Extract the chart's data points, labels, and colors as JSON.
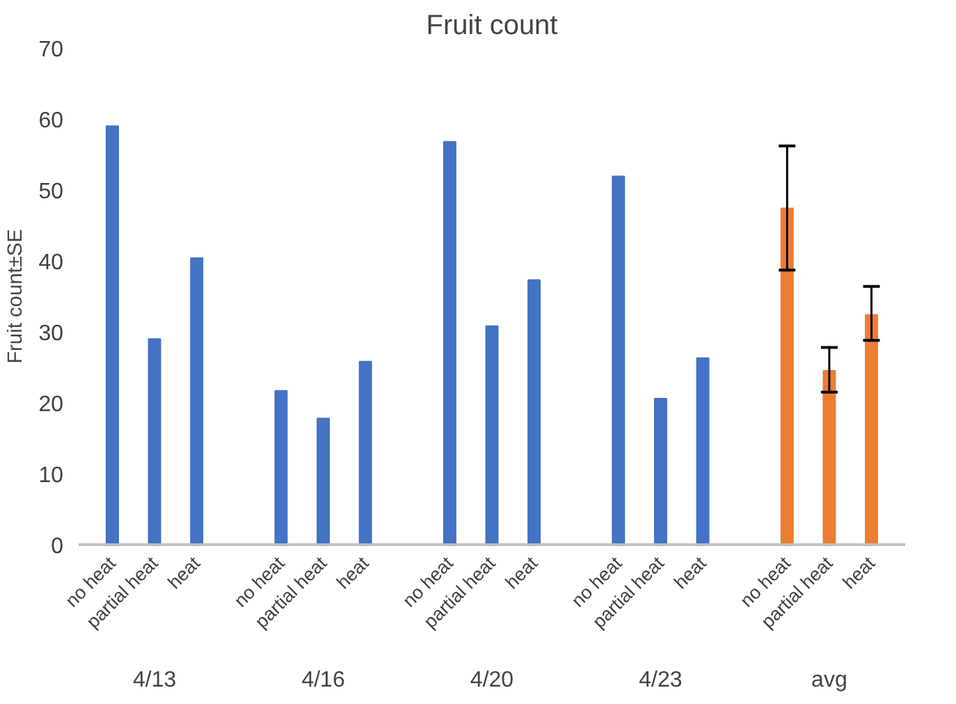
{
  "chart_data": {
    "type": "bar",
    "title": "Fruit count",
    "ylabel": "Fruit count±SE",
    "categories": [
      "no heat",
      "partial heat",
      "heat",
      null,
      "no heat",
      "partial heat",
      "heat",
      null,
      "no heat",
      "partial heat",
      "heat",
      null,
      "no heat",
      "partial heat",
      "heat",
      null,
      "no heat",
      "partial heat",
      "heat"
    ],
    "values": [
      59,
      29,
      40.4,
      null,
      21.7,
      17.8,
      25.8,
      null,
      56.8,
      30.8,
      37.3,
      null,
      51.9,
      20.6,
      26.3,
      null,
      47.4,
      24.5,
      32.4
    ],
    "colors": [
      "#4472c4",
      "#4472c4",
      "#4472c4",
      "#4472c4",
      "#4472c4",
      "#4472c4",
      "#4472c4",
      "#4472c4",
      "#4472c4",
      "#4472c4",
      "#4472c4",
      "#4472c4",
      "#4472c4",
      "#4472c4",
      "#4472c4",
      "#4472c4",
      "#ed7d31",
      "#ed7d31",
      "#ed7d31"
    ],
    "errors": [
      null,
      null,
      null,
      null,
      null,
      null,
      null,
      null,
      null,
      null,
      null,
      null,
      null,
      null,
      null,
      null,
      [
        38.7,
        56.2
      ],
      [
        21.5,
        27.8
      ],
      [
        28.8,
        36.4
      ]
    ],
    "annotations": [
      "4/13",
      "4/16",
      "4/20",
      "4/23",
      "avg"
    ],
    "ylim": [
      0,
      70
    ],
    "yticks": [
      0,
      10,
      20,
      30,
      40,
      50,
      60,
      70
    ],
    "grid": false
  }
}
